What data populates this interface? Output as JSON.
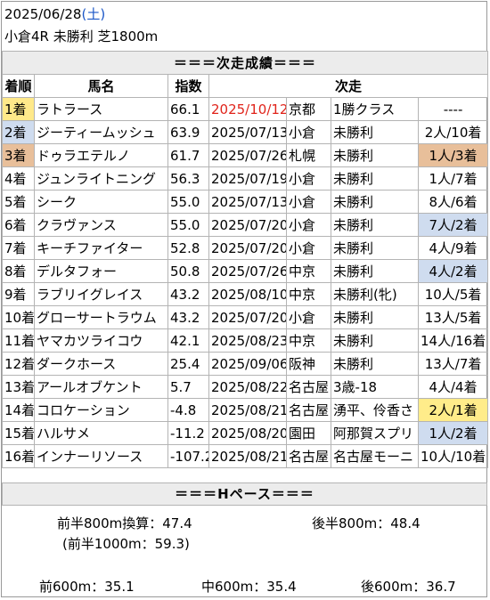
{
  "header": {
    "date": "2025/06/28",
    "weekday": "(土)",
    "race": "小倉4R 未勝利 芝1800m"
  },
  "table": {
    "section_title": "＝＝＝次走成績＝＝＝",
    "columns": [
      "着順",
      "馬名",
      "指数",
      "次走"
    ],
    "rows": [
      {
        "pos": "1着",
        "name": "ラトラース",
        "index": "66.1",
        "date": "2025/10/12",
        "venue": "京都",
        "class": "1勝クラス",
        "result": "----"
      },
      {
        "pos": "2着",
        "name": "ジーティームッシュ",
        "index": "63.9",
        "date": "2025/07/13",
        "venue": "小倉",
        "class": "未勝利",
        "result": "2人/10着"
      },
      {
        "pos": "3着",
        "name": "ドゥラエテルノ",
        "index": "61.7",
        "date": "2025/07/26",
        "venue": "札幌",
        "class": "未勝利",
        "result": "1人/3着"
      },
      {
        "pos": "4着",
        "name": "ジュンライトニング",
        "index": "56.3",
        "date": "2025/07/19",
        "venue": "小倉",
        "class": "未勝利",
        "result": "1人/7着"
      },
      {
        "pos": "5着",
        "name": "シーク",
        "index": "55.0",
        "date": "2025/07/13",
        "venue": "小倉",
        "class": "未勝利",
        "result": "8人/6着"
      },
      {
        "pos": "6着",
        "name": "クラヴァンス",
        "index": "55.0",
        "date": "2025/07/20",
        "venue": "小倉",
        "class": "未勝利",
        "result": "7人/2着"
      },
      {
        "pos": "7着",
        "name": "キーチファイター",
        "index": "52.8",
        "date": "2025/07/20",
        "venue": "小倉",
        "class": "未勝利",
        "result": "4人/9着"
      },
      {
        "pos": "8着",
        "name": "デルタフォー",
        "index": "50.8",
        "date": "2025/07/26",
        "venue": "中京",
        "class": "未勝利",
        "result": "4人/2着"
      },
      {
        "pos": "9着",
        "name": "ラブリイグレイス",
        "index": "43.2",
        "date": "2025/08/10",
        "venue": "中京",
        "class": "未勝利(牝)",
        "result": "10人/5着"
      },
      {
        "pos": "10着",
        "name": "グローサートラウム",
        "index": "43.2",
        "date": "2025/07/20",
        "venue": "小倉",
        "class": "未勝利",
        "result": "13人/5着"
      },
      {
        "pos": "11着",
        "name": "ヤマカツライコウ",
        "index": "42.1",
        "date": "2025/08/23",
        "venue": "中京",
        "class": "未勝利",
        "result": "14人/16着"
      },
      {
        "pos": "12着",
        "name": "ダークホース",
        "index": "25.4",
        "date": "2025/09/06",
        "venue": "阪神",
        "class": "未勝利",
        "result": "13人/7着"
      },
      {
        "pos": "13着",
        "name": "アールオブケント",
        "index": "5.7",
        "date": "2025/08/22",
        "venue": "名古屋",
        "class": "3歳-18",
        "result": "4人/4着"
      },
      {
        "pos": "14着",
        "name": "コロケーション",
        "index": "-4.8",
        "date": "2025/08/21",
        "venue": "名古屋",
        "class": "湧平、伶香さ",
        "result": "2人/1着"
      },
      {
        "pos": "15着",
        "name": "ハルサメ",
        "index": "-11.2",
        "date": "2025/08/20",
        "venue": "園田",
        "class": "阿那賀スプリ",
        "result": "1人/2着"
      },
      {
        "pos": "16着",
        "name": "インナーリソース",
        "index": "-107.2",
        "date": "2025/08/21",
        "venue": "名古屋",
        "class": "名古屋モーニ",
        "result": "10人/10着"
      }
    ]
  },
  "pace": {
    "section_title": "＝＝＝Hペース＝＝＝",
    "first_800": "前半800m換算：47.4",
    "last_800": "後半800m：48.4",
    "first_1000": "(前半1000m：59.3)",
    "front_600": "前600m：35.1",
    "mid_600": "中600m：35.4",
    "back_600": "後600m：36.7"
  },
  "colors": {
    "first_place": "#ffe98a",
    "second_place": "#cfdcef",
    "third_place": "#e8bf9a",
    "highlight_red_date": "#e0241b",
    "weekday_blue": "#1a56c7"
  }
}
